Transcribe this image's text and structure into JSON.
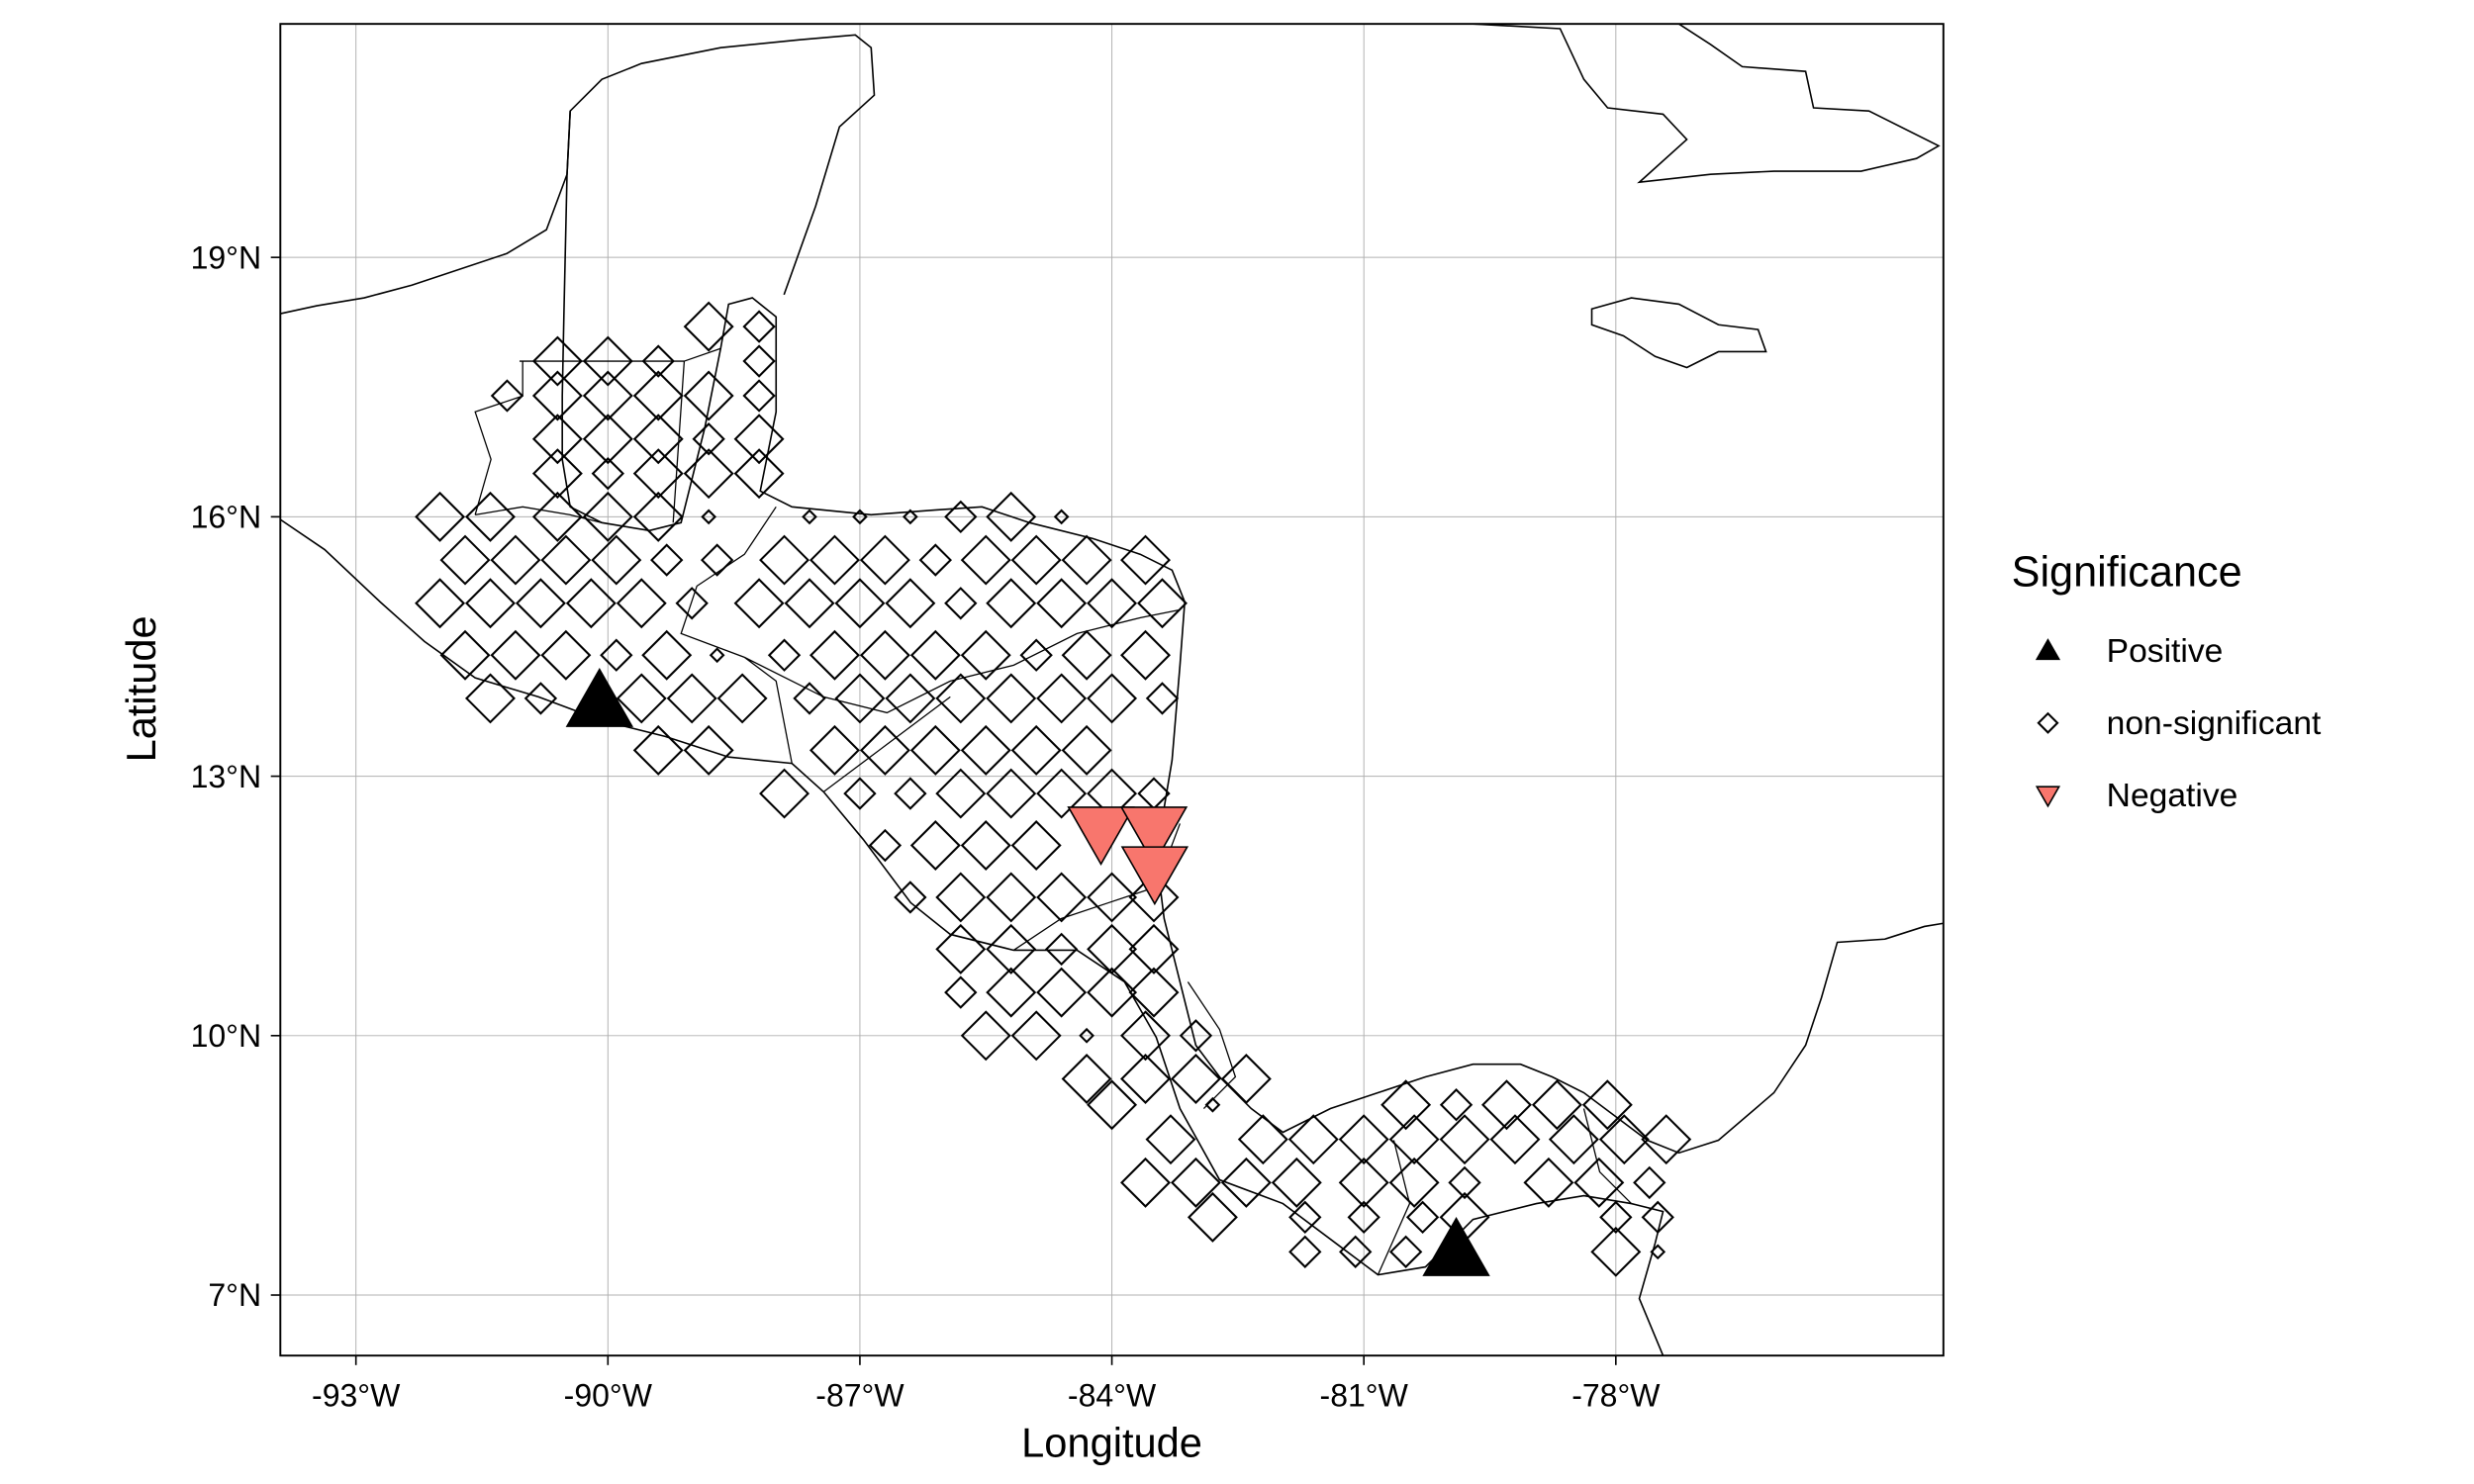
{
  "chart_data": {
    "type": "scatter",
    "x_label": "Longitude",
    "y_label": "Latitude",
    "legend_title": "Significance",
    "legend": "right",
    "grid": true,
    "xlim": [
      -93.9,
      -74.1
    ],
    "ylim": [
      6.3,
      21.7
    ],
    "xticks": [
      {
        "value": -93,
        "label": "-93°W"
      },
      {
        "value": -90,
        "label": "-90°W"
      },
      {
        "value": -87,
        "label": "-87°W"
      },
      {
        "value": -84,
        "label": "-84°W"
      },
      {
        "value": -81,
        "label": "-81°W"
      },
      {
        "value": -78,
        "label": "-78°W"
      }
    ],
    "yticks": [
      {
        "value": 7,
        "label": "7°N"
      },
      {
        "value": 10,
        "label": "10°N"
      },
      {
        "value": 13,
        "label": "13°N"
      },
      {
        "value": 16,
        "label": "16°N"
      },
      {
        "value": 19,
        "label": "19°N"
      }
    ],
    "series": [
      {
        "name": "Positive",
        "shape": "triangle-up",
        "color": "#000000",
        "x": [
          -90.1,
          -79.9
        ],
        "y": [
          13.86,
          7.51
        ],
        "sizes": [
          4,
          4
        ]
      },
      {
        "name": "non-significant",
        "shape": "diamond",
        "color": "none",
        "x": [
          -88.8,
          -88.2,
          -90.6,
          -90.0,
          -89.4,
          -88.2,
          -91.2,
          -90.6,
          -90.0,
          -89.4,
          -88.8,
          -88.2,
          -90.6,
          -90.0,
          -89.4,
          -88.8,
          -88.2,
          -90.6,
          -90.0,
          -89.4,
          -88.8,
          -88.2,
          -92.0,
          -91.4,
          -90.6,
          -90.0,
          -89.4,
          -88.8,
          -87.6,
          -87.0,
          -86.4,
          -85.8,
          -85.2,
          -84.6,
          -91.7,
          -91.1,
          -90.5,
          -89.9,
          -89.3,
          -88.7,
          -87.9,
          -87.3,
          -86.7,
          -86.1,
          -85.5,
          -84.9,
          -84.3,
          -83.6,
          -92.0,
          -91.4,
          -90.8,
          -90.2,
          -89.6,
          -89.0,
          -88.2,
          -87.6,
          -87.0,
          -86.4,
          -85.8,
          -85.2,
          -84.6,
          -84.0,
          -83.4,
          -91.7,
          -91.1,
          -90.5,
          -89.9,
          -89.3,
          -88.7,
          -87.9,
          -87.3,
          -86.7,
          -86.1,
          -85.5,
          -84.9,
          -84.3,
          -83.6,
          -91.4,
          -90.8,
          -89.6,
          -89.0,
          -88.4,
          -87.6,
          -87.0,
          -86.4,
          -85.8,
          -85.2,
          -84.6,
          -84.0,
          -83.4,
          -89.4,
          -88.8,
          -87.3,
          -86.7,
          -86.1,
          -85.5,
          -84.9,
          -84.3,
          -87.9,
          -87.0,
          -86.4,
          -85.8,
          -85.2,
          -84.6,
          -84.0,
          -83.5,
          -86.7,
          -86.1,
          -85.5,
          -84.9,
          -86.4,
          -85.8,
          -85.2,
          -84.6,
          -84.0,
          -83.5,
          -85.8,
          -85.2,
          -84.6,
          -84.0,
          -83.5,
          -85.8,
          -85.2,
          -84.6,
          -84.0,
          -83.5,
          -85.5,
          -84.9,
          -84.3,
          -83.6,
          -83.0,
          -84.3,
          -83.6,
          -83.0,
          -82.4,
          -84.0,
          -82.8,
          -80.5,
          -79.9,
          -79.3,
          -78.7,
          -78.1,
          -83.3,
          -82.2,
          -81.6,
          -81.0,
          -80.4,
          -79.8,
          -79.2,
          -78.5,
          -77.9,
          -77.4,
          -83.6,
          -83.0,
          -82.4,
          -81.8,
          -81.0,
          -80.4,
          -79.8,
          -78.8,
          -78.2,
          -77.6,
          -82.8,
          -81.7,
          -81.0,
          -80.3,
          -79.8,
          -78.0,
          -77.5,
          -81.7,
          -81.1,
          -80.5,
          -78.0,
          -77.5
        ],
        "y": [
          18.2,
          18.2,
          17.8,
          17.8,
          17.8,
          17.8,
          17.4,
          17.4,
          17.4,
          17.4,
          17.4,
          17.4,
          16.9,
          16.9,
          16.9,
          16.9,
          16.9,
          16.5,
          16.5,
          16.5,
          16.5,
          16.5,
          16.0,
          16.0,
          16.0,
          16.0,
          16.0,
          16.0,
          16.0,
          16.0,
          16.0,
          16.0,
          16.0,
          16.0,
          15.5,
          15.5,
          15.5,
          15.5,
          15.5,
          15.5,
          15.5,
          15.5,
          15.5,
          15.5,
          15.5,
          15.5,
          15.5,
          15.5,
          15.0,
          15.0,
          15.0,
          15.0,
          15.0,
          15.0,
          15.0,
          15.0,
          15.0,
          15.0,
          15.0,
          15.0,
          15.0,
          15.0,
          15.0,
          14.4,
          14.4,
          14.4,
          14.4,
          14.4,
          14.4,
          14.4,
          14.4,
          14.4,
          14.4,
          14.4,
          14.4,
          14.4,
          14.4,
          13.9,
          13.9,
          13.9,
          13.9,
          13.9,
          13.9,
          13.9,
          13.9,
          13.9,
          13.9,
          13.9,
          13.9,
          13.9,
          13.3,
          13.3,
          13.3,
          13.3,
          13.3,
          13.3,
          13.3,
          13.3,
          12.8,
          12.8,
          12.8,
          12.8,
          12.8,
          12.8,
          12.8,
          12.8,
          12.2,
          12.2,
          12.2,
          12.2,
          11.6,
          11.6,
          11.6,
          11.6,
          11.6,
          11.6,
          11.0,
          11.0,
          11.0,
          11.0,
          11.0,
          10.5,
          10.5,
          10.5,
          10.5,
          10.5,
          10.0,
          10.0,
          10.0,
          10.0,
          10.0,
          9.5,
          9.5,
          9.5,
          9.5,
          9.2,
          9.2,
          9.2,
          9.2,
          9.2,
          9.2,
          9.2,
          8.8,
          8.8,
          8.8,
          8.8,
          8.8,
          8.8,
          8.8,
          8.8,
          8.8,
          8.8,
          8.3,
          8.3,
          8.3,
          8.3,
          8.3,
          8.3,
          8.3,
          8.3,
          8.3,
          8.3,
          7.9,
          7.9,
          7.9,
          7.9,
          7.9,
          7.9,
          7.9,
          7.5,
          7.5,
          7.5,
          7.5,
          7.5
        ],
        "sizes": [
          3,
          2,
          3,
          3,
          2,
          2,
          2,
          3,
          3,
          3,
          3,
          2,
          3,
          3,
          3,
          2,
          3,
          3,
          2,
          3,
          3,
          3,
          3,
          3,
          3,
          3,
          3,
          1,
          1,
          1,
          1,
          2,
          3,
          1,
          3,
          3,
          3,
          3,
          2,
          2,
          3,
          3,
          3,
          2,
          3,
          3,
          3,
          3,
          3,
          3,
          3,
          3,
          3,
          2,
          3,
          3,
          3,
          3,
          2,
          3,
          3,
          3,
          3,
          3,
          3,
          3,
          2,
          3,
          1,
          2,
          3,
          3,
          3,
          3,
          2,
          3,
          3,
          3,
          2,
          3,
          3,
          3,
          2,
          3,
          3,
          3,
          3,
          3,
          3,
          2,
          3,
          3,
          3,
          3,
          3,
          3,
          3,
          3,
          3,
          2,
          2,
          3,
          3,
          3,
          3,
          2,
          2,
          3,
          3,
          3,
          2,
          3,
          3,
          3,
          3,
          3,
          3,
          3,
          2,
          3,
          3,
          2,
          3,
          3,
          3,
          3,
          3,
          3,
          1,
          3,
          2,
          3,
          3,
          3,
          3,
          3,
          1,
          3,
          2,
          3,
          3,
          3,
          3,
          3,
          3,
          3,
          3,
          3,
          3,
          3,
          3,
          3,
          3,
          3,
          3,
          3,
          3,
          3,
          2,
          3,
          3,
          2,
          3,
          2,
          2,
          2,
          3,
          2,
          2,
          2,
          2,
          2,
          3,
          1
        ]
      },
      {
        "name": "Negative",
        "shape": "triangle-down",
        "color": "#F8766D",
        "x": [
          -84.13,
          -83.5,
          -83.49
        ],
        "y": [
          12.36,
          12.36,
          11.9
        ],
        "sizes": [
          4,
          4,
          4
        ]
      }
    ]
  }
}
